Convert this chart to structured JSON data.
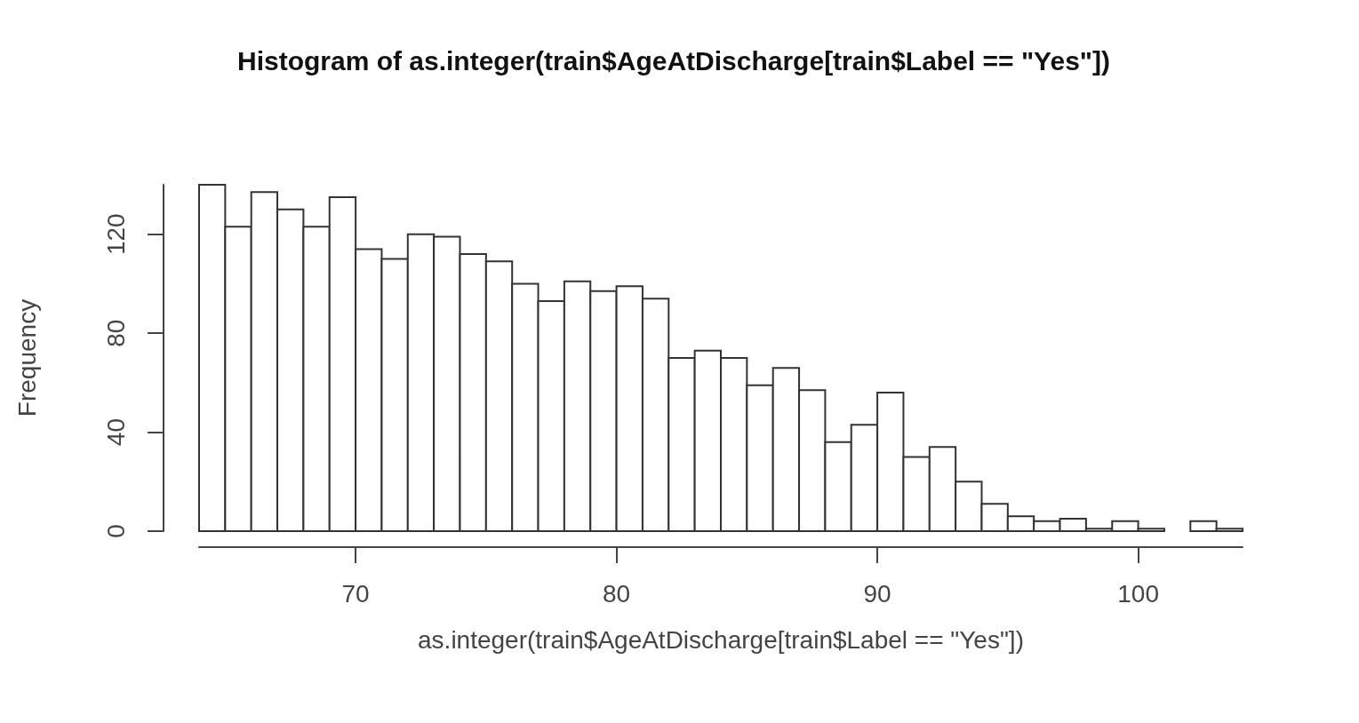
{
  "chart_data": {
    "type": "histogram",
    "title": "Histogram of as.integer(train$AgeAtDischarge[train$Label == \"Yes\"])",
    "xlabel": "as.integer(train$AgeAtDischarge[train$Label == \"Yes\"])",
    "ylabel": "Frequency",
    "bins": [
      64,
      65,
      66,
      67,
      68,
      69,
      70,
      71,
      72,
      73,
      74,
      75,
      76,
      77,
      78,
      79,
      80,
      81,
      82,
      83,
      84,
      85,
      86,
      87,
      88,
      89,
      90,
      91,
      92,
      93,
      94,
      95,
      96,
      97,
      98,
      99,
      100,
      101,
      102,
      103,
      104
    ],
    "values": [
      140,
      123,
      137,
      130,
      123,
      135,
      114,
      110,
      120,
      119,
      112,
      109,
      100,
      93,
      101,
      97,
      99,
      94,
      70,
      73,
      70,
      59,
      66,
      57,
      36,
      43,
      56,
      30,
      34,
      20,
      11,
      6,
      4,
      5,
      1,
      4,
      1,
      0,
      4,
      1
    ],
    "color": "#ffffff",
    "xlim": [
      64,
      104
    ],
    "xticks": [
      70,
      80,
      90,
      100
    ],
    "ylim": [
      0,
      140
    ],
    "yticks": [
      0,
      40,
      80,
      120
    ],
    "grid": false
  }
}
